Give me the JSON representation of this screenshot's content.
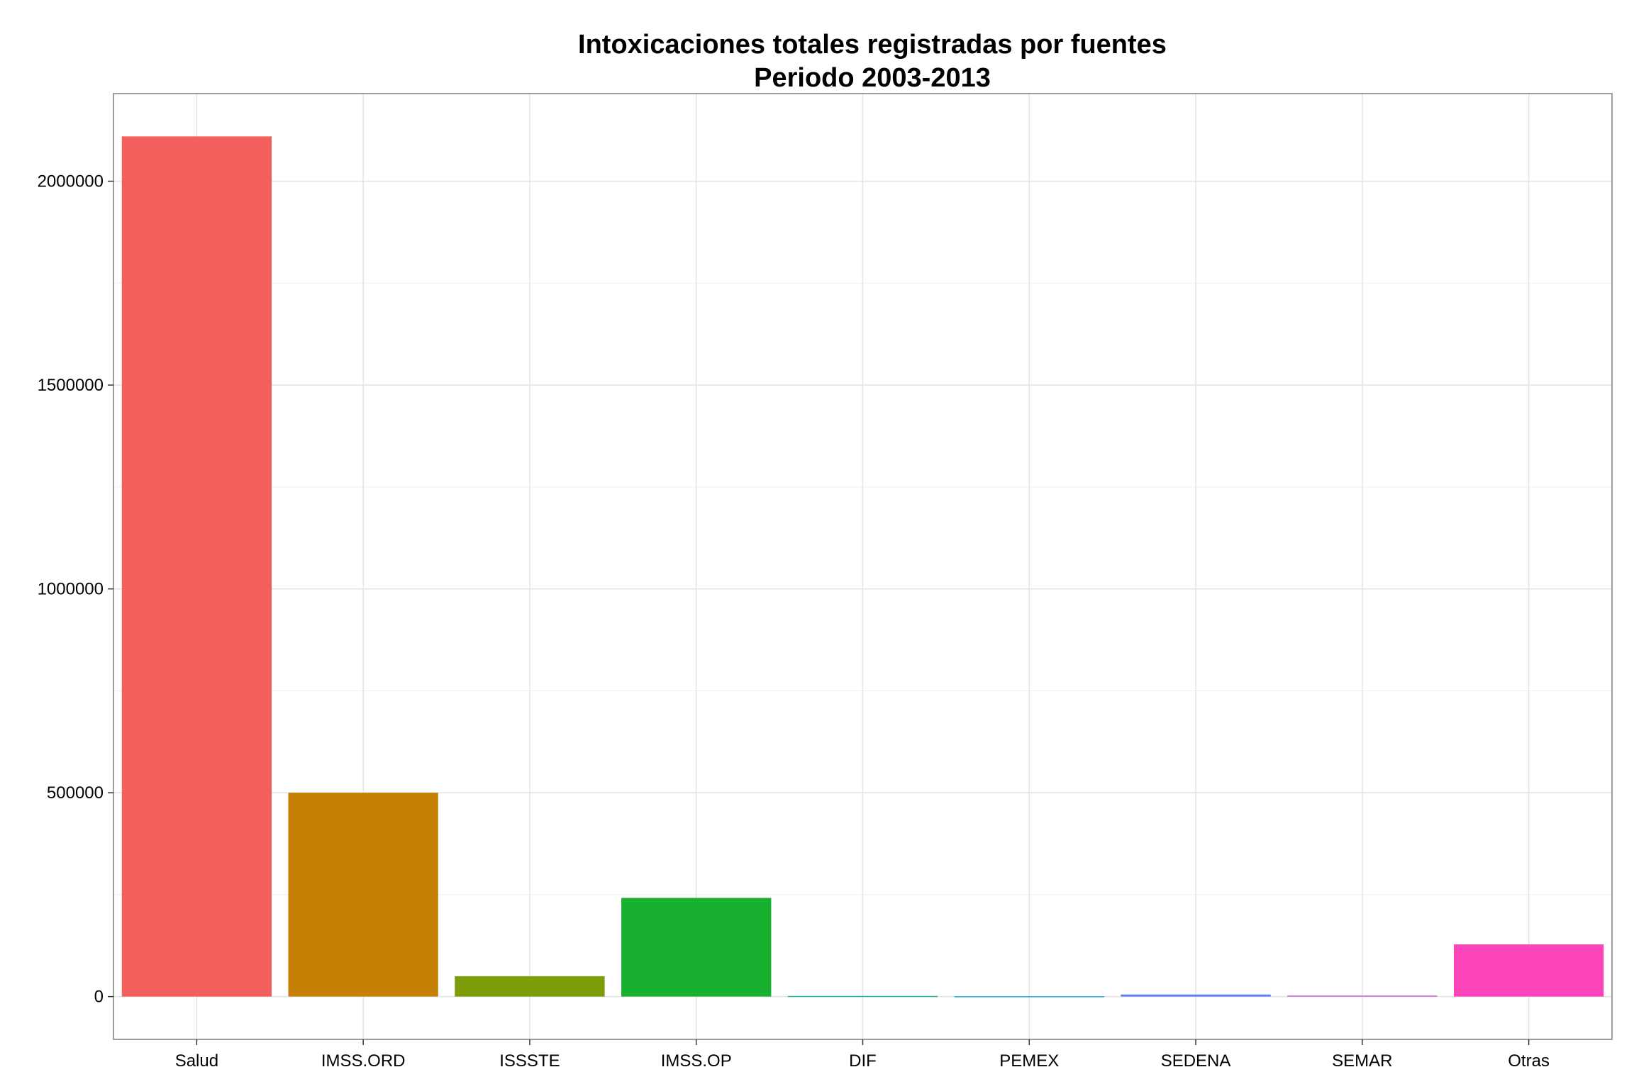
{
  "chart_data": {
    "type": "bar",
    "title": "Intoxicaciones totales registradas por fuentes",
    "subtitle": "Periodo 2003-2013",
    "xlabel": "",
    "ylabel": "",
    "categories": [
      "Salud",
      "IMSS.ORD",
      "ISSSTE",
      "IMSS.OP",
      "DIF",
      "PEMEX",
      "SEDENA",
      "SEMAR",
      "Otras"
    ],
    "values": [
      2110000,
      500000,
      50000,
      242000,
      1500,
      800,
      5000,
      2500,
      128000
    ],
    "colors": [
      "#F25F5C",
      "#C78006",
      "#7E9D0A",
      "#17B12F",
      "#1CB7A0",
      "#19AFE6",
      "#5B7FF0",
      "#D35BE2",
      "#FC45BB"
    ],
    "ylim": [
      -105000,
      2215000
    ],
    "y_ticks": [
      0,
      500000,
      1000000,
      1500000,
      2000000
    ],
    "y_tick_labels": [
      "0",
      "500000",
      "1000000",
      "1500000",
      "2000000"
    ],
    "grid": true,
    "legend": "none"
  }
}
